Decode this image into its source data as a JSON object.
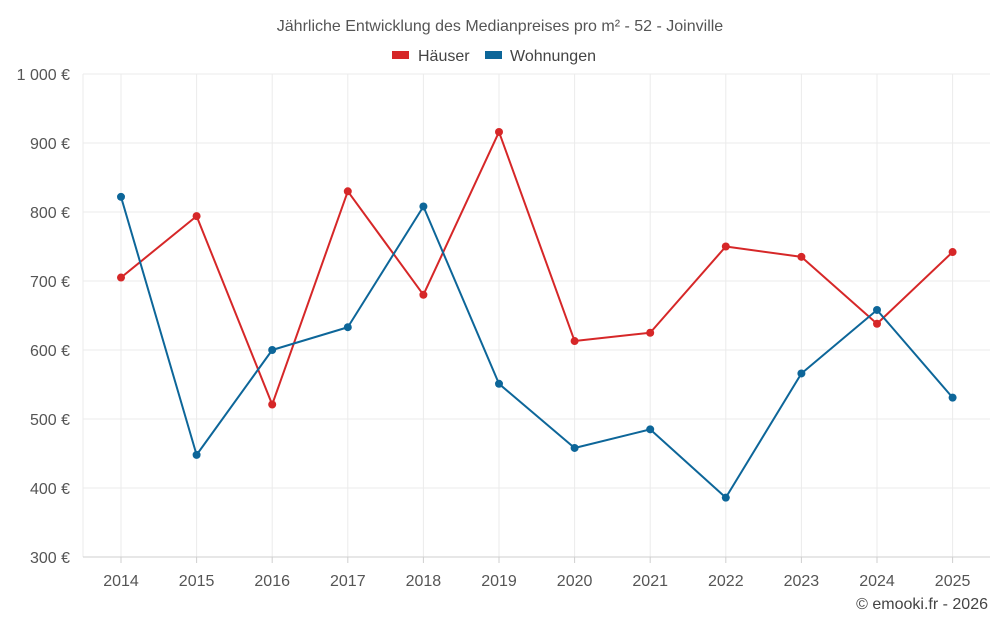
{
  "chart_data": {
    "type": "line",
    "title": "Jährliche Entwicklung des Medianpreises pro m² - 52 - Joinville",
    "categories": [
      "2014",
      "2015",
      "2016",
      "2017",
      "2018",
      "2019",
      "2020",
      "2021",
      "2022",
      "2023",
      "2024",
      "2025"
    ],
    "ylim": [
      300,
      1000
    ],
    "yticks": [
      300,
      400,
      500,
      600,
      700,
      800,
      900,
      1000
    ],
    "ytick_labels": [
      "300 €",
      "400 €",
      "500 €",
      "600 €",
      "700 €",
      "800 €",
      "900 €",
      "1 000 €"
    ],
    "xlabel": "",
    "ylabel": "",
    "legend_position": "top-center",
    "series": [
      {
        "name": "Häuser",
        "color": "#d62728",
        "values": [
          705,
          794,
          521,
          830,
          680,
          916,
          613,
          625,
          750,
          735,
          638,
          742
        ]
      },
      {
        "name": "Wohnungen",
        "color": "#0d6699",
        "values": [
          822,
          448,
          600,
          633,
          808,
          551,
          458,
          485,
          386,
          566,
          658,
          531
        ]
      }
    ],
    "credit": "© emooki.fr - 2026"
  }
}
